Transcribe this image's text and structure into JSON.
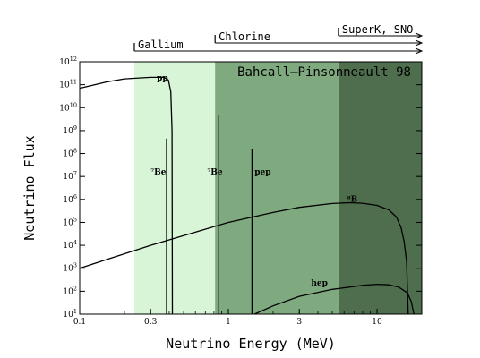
{
  "chart_data": {
    "type": "line",
    "title": "Bahcall–Pinsonneault 98",
    "xlabel": "Neutrino Energy (MeV)",
    "ylabel": "Neutrino Flux",
    "x_scale": "log",
    "y_scale": "log",
    "xlim": [
      0.1,
      20
    ],
    "ylim": [
      10,
      1000000000000.0
    ],
    "grid": false,
    "x_ticks": [
      {
        "value": 0.1,
        "label": "0.1"
      },
      {
        "value": 0.3,
        "label": "0.3"
      },
      {
        "value": 1,
        "label": "1"
      },
      {
        "value": 3,
        "label": "3"
      },
      {
        "value": 10,
        "label": "10"
      }
    ],
    "y_ticks": [
      {
        "exp": 1,
        "base": "10",
        "sup": "1"
      },
      {
        "exp": 2,
        "base": "10",
        "sup": "2"
      },
      {
        "exp": 3,
        "base": "10",
        "sup": "3"
      },
      {
        "exp": 4,
        "base": "10",
        "sup": "4"
      },
      {
        "exp": 5,
        "base": "10",
        "sup": "5"
      },
      {
        "exp": 6,
        "base": "10",
        "sup": "6"
      },
      {
        "exp": 7,
        "base": "10",
        "sup": "7"
      },
      {
        "exp": 8,
        "base": "10",
        "sup": "8"
      },
      {
        "exp": 9,
        "base": "10",
        "sup": "9"
      },
      {
        "exp": 10,
        "base": "10",
        "sup": "10"
      },
      {
        "exp": 11,
        "base": "10",
        "sup": "11"
      },
      {
        "exp": 12,
        "base": "10",
        "sup": "12"
      }
    ],
    "regions": [
      {
        "label": "Gallium",
        "threshold": 0.233,
        "color": "#d8f5d8"
      },
      {
        "label": "Chlorine",
        "threshold": 0.814,
        "color": "#7fa97f"
      },
      {
        "label": "SuperK, SNO",
        "threshold": 5.5,
        "color": "#4e6e4e"
      }
    ],
    "series": [
      {
        "name": "pp",
        "label_at": [
          0.33,
          150000000000.0
        ],
        "points": [
          [
            0.1,
            70000000000.0
          ],
          [
            0.15,
            130000000000.0
          ],
          [
            0.2,
            180000000000.0
          ],
          [
            0.3,
            210000000000.0
          ],
          [
            0.37,
            210000000000.0
          ],
          [
            0.395,
            160000000000.0
          ],
          [
            0.41,
            50000000000.0
          ],
          [
            0.418,
            1000000000.0
          ],
          [
            0.42,
            10
          ]
        ]
      },
      {
        "name": "⁷Be",
        "kind": "line",
        "x": 0.384,
        "peak": 450000000.0,
        "label_at": [
          0.3,
          12000000.0
        ]
      },
      {
        "name": "⁷Be",
        "kind": "line",
        "x": 0.862,
        "peak": 4500000000.0,
        "label_at": [
          0.72,
          12000000.0
        ]
      },
      {
        "name": "pep",
        "kind": "line",
        "x": 1.442,
        "peak": 150000000.0,
        "label_at": [
          1.5,
          12000000.0
        ]
      },
      {
        "name": "⁸B",
        "label_at": [
          6.3,
          800000.0
        ],
        "points": [
          [
            0.1,
            1000.0
          ],
          [
            0.3,
            10000.0
          ],
          [
            1,
            100000.0
          ],
          [
            2,
            270000.0
          ],
          [
            3,
            450000.0
          ],
          [
            5,
            660000.0
          ],
          [
            6.5,
            720000.0
          ],
          [
            8,
            680000.0
          ],
          [
            10,
            550000.0
          ],
          [
            12,
            350000.0
          ],
          [
            13.5,
            170000.0
          ],
          [
            14.5,
            60000.0
          ],
          [
            15.2,
            15000.0
          ],
          [
            15.8,
            2000.0
          ],
          [
            16.2,
            10
          ]
        ]
      },
      {
        "name": "hep",
        "label_at": [
          3.6,
          180.0
        ],
        "points": [
          [
            1.5,
            10
          ],
          [
            2,
            23
          ],
          [
            3,
            60
          ],
          [
            5,
            120
          ],
          [
            8,
            180
          ],
          [
            10,
            200
          ],
          [
            12,
            190
          ],
          [
            14,
            150
          ],
          [
            16,
            85
          ],
          [
            17,
            35
          ],
          [
            17.7,
            10
          ]
        ]
      }
    ]
  }
}
